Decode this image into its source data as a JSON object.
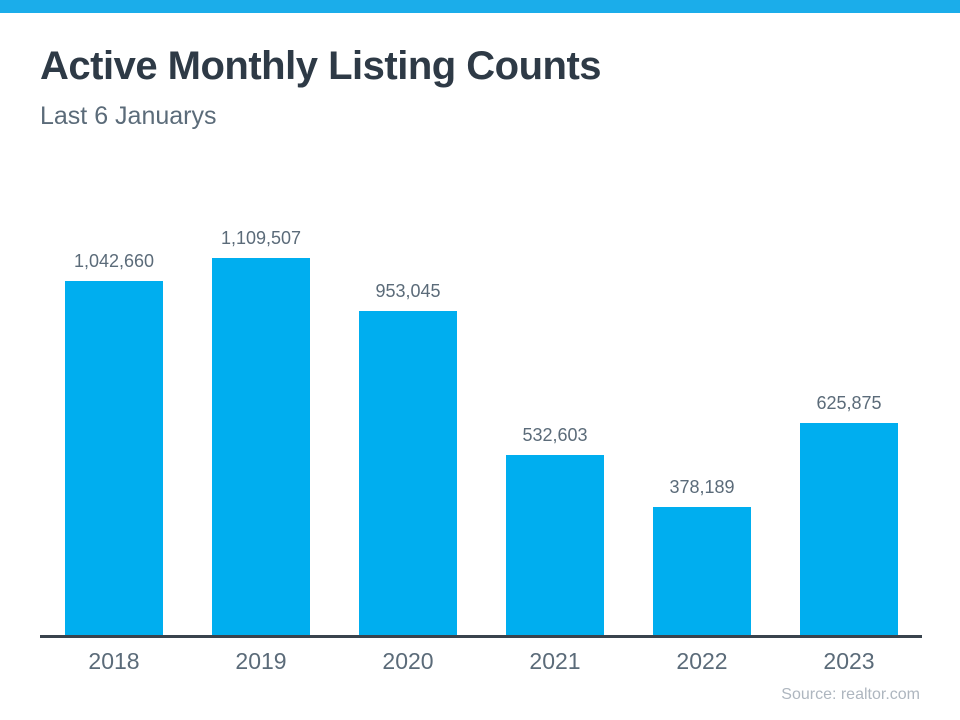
{
  "page": {
    "title": "Active Monthly Listing Counts",
    "subtitle": "Last 6 Januarys",
    "source": "Source: realtor.com"
  },
  "colors": {
    "top_stripe": "#1badea",
    "bar": "#00aeef",
    "title_text": "#2e3a46",
    "label_text": "#5b6b79",
    "axis_line": "#39434d",
    "source_text": "#aeb6bf"
  },
  "chart_data": {
    "type": "bar",
    "title": "Active Monthly Listing Counts",
    "subtitle": "Last 6 Januarys",
    "categories": [
      "2018",
      "2019",
      "2020",
      "2021",
      "2022",
      "2023"
    ],
    "values": [
      1042660,
      1109507,
      953045,
      532603,
      378189,
      625875
    ],
    "values_formatted": [
      "1,042,660",
      "1,109,507",
      "953,045",
      "532,603",
      "378,189",
      "625,875"
    ],
    "xlabel": "",
    "ylabel": "",
    "ylim": [
      0,
      1109507
    ],
    "grid": false,
    "legend": false,
    "y_axis_shown": false,
    "bar_color": "#00aeef",
    "annotation": "Source: realtor.com"
  }
}
